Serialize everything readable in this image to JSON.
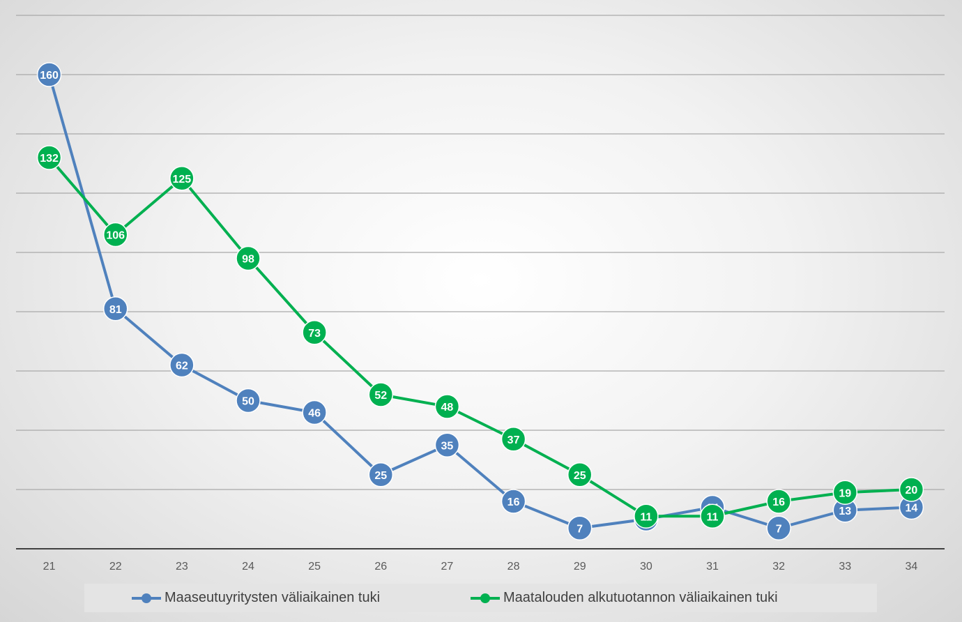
{
  "chart_data": {
    "type": "line",
    "categories": [
      "21",
      "22",
      "23",
      "24",
      "25",
      "26",
      "27",
      "28",
      "29",
      "30",
      "31",
      "32",
      "33",
      "34"
    ],
    "series": [
      {
        "name": "Maaseutuyritysten väliaikainen tuki",
        "color": "#4f81bd",
        "values": [
          160,
          81,
          62,
          50,
          46,
          25,
          35,
          16,
          7,
          10,
          14,
          7,
          13,
          14
        ]
      },
      {
        "name": "Maatalouden alkutuotannon väliaikainen tuki",
        "color": "#00b050",
        "values": [
          132,
          106,
          125,
          98,
          73,
          52,
          48,
          37,
          25,
          11,
          11,
          16,
          19,
          20
        ]
      }
    ],
    "title": "",
    "xlabel": "",
    "ylabel": "",
    "ylim": [
      0,
      180
    ],
    "grid": true,
    "y_tick_labels_shown": false,
    "data_labels": true,
    "legend_position": "bottom"
  }
}
